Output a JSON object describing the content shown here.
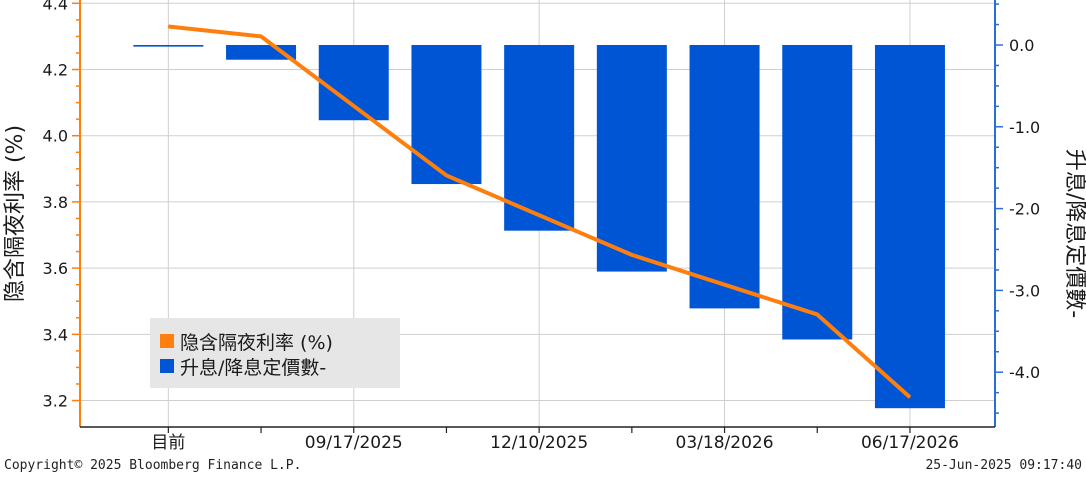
{
  "chart_data": {
    "type": "bar+line",
    "categories": [
      "目前",
      "",
      "09/17/2025",
      "",
      "12/10/2025",
      "",
      "03/18/2026",
      "",
      "06/17/2026"
    ],
    "x_tick_labels": [
      "目前",
      "09/17/2025",
      "12/10/2025",
      "03/18/2026",
      "06/17/2026"
    ],
    "series": [
      {
        "name": "隐含隔夜利率 (%)",
        "type": "line",
        "axis": "left",
        "color": "#ff7f0e",
        "values": [
          4.33,
          4.3,
          4.09,
          3.88,
          3.76,
          3.64,
          3.55,
          3.46,
          3.21
        ]
      },
      {
        "name": "升息/降息定價數-",
        "type": "bar",
        "axis": "right",
        "color": "#0055d4",
        "values": [
          -0.02,
          -0.18,
          -0.92,
          -1.7,
          -2.27,
          -2.77,
          -3.22,
          -3.6,
          -4.44
        ]
      }
    ],
    "ylabel_left": "隐含隔夜利率 (%)",
    "ylabel_right": "升息/降息定價數-",
    "ylim_left": [
      3.12,
      4.41
    ],
    "ylim_right": [
      -4.67,
      0.55
    ],
    "yticks_left": [
      "4.4",
      "4.2",
      "4.0",
      "3.8",
      "3.6",
      "3.4",
      "3.2"
    ],
    "yticks_right": [
      "0.0",
      "-1.0",
      "-2.0",
      "-3.0",
      "-4.0"
    ],
    "legend_position": "bottom-left",
    "left_axis_color": "#ff7f0e",
    "right_axis_color": "#2a6fd6"
  },
  "footer": {
    "copyright": "Copyright© 2025 Bloomberg Finance L.P.",
    "timestamp": "25-Jun-2025 09:17:40"
  }
}
